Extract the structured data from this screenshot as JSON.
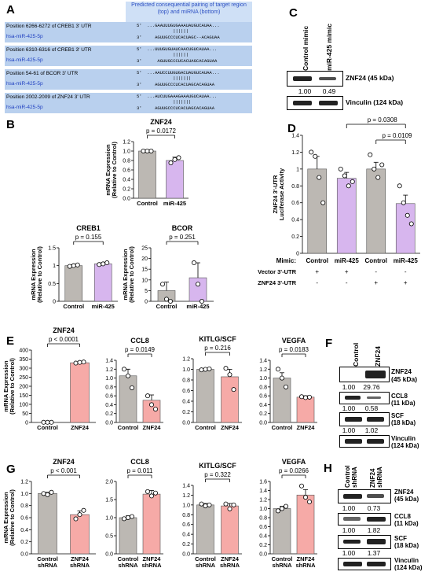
{
  "panels": [
    "A",
    "B",
    "C",
    "D",
    "E",
    "F",
    "G",
    "H"
  ],
  "panel_a": {
    "header": "Predicted consequential pairing of target region (top) and miRNA (bottom)",
    "rows": [
      {
        "target": "Position 6266-6272 of CREB1 3' UTR",
        "mirna": "hsa-miR-425-5p",
        "top": "5'  ...GAAUUUGUGAAAUAUGUCAUAA...",
        "mid": "              ||||||",
        "bottom": "3'     AGUUGCCCUCACUAGC--ACAGUAA"
      },
      {
        "target": "Position 6310-6316 of CREB1 3' UTR",
        "mirna": "hsa-miR-425-5p",
        "top": "5'  ...UUUGUGUAUCAACUGUCAUAA...",
        "mid": "              ||||||",
        "bottom": "3'      AGUUGCCCUCACUAGCACAGUAA"
      },
      {
        "target": "Position 54-61 of BCOR 3' UTR",
        "mirna": "hsa-miR-425-5p",
        "top": "5'  ...AAUCCUUGUGACUAUGUCAUAA...",
        "mid": "              |||||||",
        "bottom": "3'     AGUUGCCCUCACUAGCACAGUAA"
      },
      {
        "target": "Position 2002-2009 of ZNF24 3' UTR",
        "mirna": "hsa-miR-425-5p",
        "top": "5'  ...AUCUUGAAAGAAAUGUCAUAA...",
        "mid": "              |||||||",
        "bottom": "3'     AGUUGCCCUCACUAGCACAGUAA"
      }
    ]
  },
  "panel_c": {
    "lanes": [
      "Control mimic",
      "miR-425 mimic"
    ],
    "labels": [
      "ZNF24 (45 kDa)",
      "Vinculin (124 kDa)"
    ],
    "values": [
      "1.00",
      "0.49"
    ]
  },
  "panel_f": {
    "lanes": [
      "Control",
      "ZNF24"
    ],
    "blots": [
      {
        "label": "ZNF24\n(45 kDa)",
        "values": [
          "1.00",
          "29.76"
        ]
      },
      {
        "label": "CCL8\n(11 kDa)",
        "values": [
          "1.00",
          "0.58"
        ]
      },
      {
        "label": "SCF\n(18 kDa)",
        "values": [
          "1.00",
          "1.02"
        ]
      },
      {
        "label": "Vinculin\n(124 kDa)",
        "values": []
      }
    ]
  },
  "panel_h": {
    "lanes": [
      "Control\nshRNA",
      "ZNF24\nshRNA"
    ],
    "blots": [
      {
        "label": "ZNF24\n(45 kDa)",
        "values": [
          "1.00",
          "0.73"
        ]
      },
      {
        "label": "CCL8\n(11 kDa)",
        "values": [
          "1.00",
          "1.82"
        ]
      },
      {
        "label": "SCF\n(18 kDa)",
        "values": [
          "1.00",
          "1.37"
        ]
      },
      {
        "label": "Vinculin\n(124 kDa)",
        "values": []
      }
    ]
  },
  "colors": {
    "control": "#bcb8b3",
    "mir425": "#d7b6ee",
    "znf24": "#f6aaa7"
  },
  "chart_data": [
    {
      "id": "B1",
      "type": "bar",
      "title": "ZNF24",
      "ylabel": "mRNA Expression\n(Relative to Control)",
      "categories": [
        "Control",
        "miR-425"
      ],
      "values": [
        1.0,
        0.8
      ],
      "errors": [
        0.02,
        0.07
      ],
      "ylim": [
        0,
        1.2
      ],
      "ticks": [
        0,
        0.2,
        0.4,
        0.6,
        0.8,
        1.0,
        1.2
      ],
      "tick_labels": [
        "0.0",
        "0.2",
        "0.4",
        "0.6",
        "0.8",
        "1.0",
        "1.2"
      ],
      "points": [
        [
          1.0,
          1.0,
          1.0
        ],
        [
          0.75,
          0.82,
          0.86
        ]
      ],
      "pvalue": "p = 0.0172",
      "colors": [
        "control",
        "mir425"
      ]
    },
    {
      "id": "B2",
      "type": "bar",
      "title": "CREB1",
      "ylabel": "mRNA Expression\n(Relative to Control)",
      "categories": [
        "Control",
        "miR-425"
      ],
      "values": [
        1.0,
        1.05
      ],
      "errors": [
        0.03,
        0.03
      ],
      "ylim": [
        0,
        1.5
      ],
      "ticks": [
        0,
        0.5,
        1,
        1.5
      ],
      "tick_labels": [
        "0",
        "0.5",
        "1",
        "1.5"
      ],
      "points": [
        [
          0.98,
          1.0,
          1.02
        ],
        [
          1.03,
          1.05,
          1.08
        ]
      ],
      "pvalue": "p = 0.155",
      "colors": [
        "control",
        "mir425"
      ]
    },
    {
      "id": "B3",
      "type": "bar",
      "title": "BCOR",
      "ylabel": "mRNA Expression\n(Relative to Control)",
      "categories": [
        "Control",
        "miR-425"
      ],
      "values": [
        5,
        11
      ],
      "errors": [
        4,
        7
      ],
      "ylim": [
        0,
        25
      ],
      "ticks": [
        0,
        5,
        10,
        15,
        20,
        25
      ],
      "tick_labels": [
        "0",
        "5",
        "10",
        "15",
        "20",
        "25"
      ],
      "points": [
        [
          8,
          1,
          0
        ],
        [
          18,
          8,
          0
        ]
      ],
      "pvalue": "p = 0.251",
      "colors": [
        "control",
        "mir425"
      ]
    },
    {
      "id": "D",
      "type": "bar",
      "ylabel": "ZNF24 3'-UTR\nLuciferase Activity",
      "categories": [
        "Control",
        "miR-425",
        "Control",
        "miR-425"
      ],
      "values": [
        1.0,
        0.89,
        1.0,
        0.59
      ],
      "errors": [
        0.15,
        0.07,
        0.08,
        0.1
      ],
      "ylim": [
        0,
        1.4
      ],
      "ticks": [
        0,
        0.2,
        0.4,
        0.6,
        0.8,
        1.0,
        1.2,
        1.4
      ],
      "tick_labels": [
        "0",
        "0.2",
        "0.4",
        "0.6",
        "0.8",
        "1",
        "1.2",
        "1.4"
      ],
      "points": [
        [
          1.2,
          1.15,
          0.9,
          0.6
        ],
        [
          1.0,
          0.92,
          0.8,
          0.85
        ],
        [
          1.17,
          1.0,
          0.9,
          1.05
        ],
        [
          0.8,
          0.6,
          0.45,
          0.35
        ]
      ],
      "colors": [
        "control",
        "mir425",
        "control",
        "mir425"
      ],
      "pvalues": [
        "p = 0.0308",
        "p = 0.0109"
      ],
      "row_labels": [
        "Mimic:",
        "Vector 3'-UTR",
        "ZNF24 3'-UTR"
      ],
      "vector_signs": [
        "+",
        "+",
        "-",
        "-"
      ],
      "znf24_signs": [
        "-",
        "-",
        "+",
        "+"
      ]
    },
    {
      "id": "E1",
      "type": "bar",
      "title": "ZNF24",
      "ylabel": "mRNA Expression\n(Relative to Control)",
      "categories": [
        "Control",
        "ZNF24"
      ],
      "values": [
        1.0,
        330
      ],
      "errors": [
        0.1,
        5
      ],
      "ylim": [
        0,
        400
      ],
      "ticks": [
        0,
        50,
        100,
        150,
        200,
        250,
        300,
        350,
        400
      ],
      "tick_labels": [
        "0",
        "50",
        "100",
        "150",
        "200",
        "250",
        "300",
        "350",
        "400"
      ],
      "points": [
        [
          1,
          1,
          1
        ],
        [
          328,
          332,
          334
        ]
      ],
      "pvalue": "p < 0.0001",
      "colors": [
        "control",
        "znf24"
      ]
    },
    {
      "id": "E2",
      "type": "bar",
      "title": "CCL8",
      "categories": [
        "Control",
        "ZNF24"
      ],
      "values": [
        1.05,
        0.5
      ],
      "errors": [
        0.15,
        0.12
      ],
      "ylim": [
        0,
        1.4
      ],
      "ticks": [
        0,
        0.2,
        0.4,
        0.6,
        0.8,
        1.0,
        1.2,
        1.4
      ],
      "tick_labels": [
        "0.0",
        "0.2",
        "0.4",
        "0.6",
        "0.8",
        "1.0",
        "1.2",
        "1.4"
      ],
      "points": [
        [
          1.2,
          1.05,
          0.78
        ],
        [
          0.6,
          0.4,
          0.3
        ]
      ],
      "pvalue": "p = 0.0149",
      "colors": [
        "control",
        "znf24"
      ]
    },
    {
      "id": "E3",
      "type": "bar",
      "title": "KITLG/SCF",
      "categories": [
        "Control",
        "ZNF24"
      ],
      "values": [
        1.0,
        0.86
      ],
      "errors": [
        0.01,
        0.14
      ],
      "ylim": [
        0,
        1.2
      ],
      "ticks": [
        0,
        0.2,
        0.4,
        0.6,
        0.8,
        1.0,
        1.2
      ],
      "tick_labels": [
        "0.0",
        "0.2",
        "0.4",
        "0.6",
        "0.8",
        "1.0",
        "1.2"
      ],
      "points": [
        [
          0.99,
          1.0,
          1.01
        ],
        [
          1.02,
          0.9,
          0.62
        ]
      ],
      "pvalue": "p = 0.216",
      "colors": [
        "control",
        "znf24"
      ]
    },
    {
      "id": "E4",
      "type": "bar",
      "title": "VEGFA",
      "categories": [
        "Control",
        "ZNF24"
      ],
      "values": [
        1.0,
        0.57
      ],
      "errors": [
        0.12,
        0.03
      ],
      "ylim": [
        0,
        1.4
      ],
      "ticks": [
        0,
        0.2,
        0.4,
        0.6,
        0.8,
        1.0,
        1.2,
        1.4
      ],
      "tick_labels": [
        "0.0",
        "0.2",
        "0.4",
        "0.6",
        "0.8",
        "1.0",
        "1.2",
        "1.4"
      ],
      "points": [
        [
          1.2,
          1.0,
          0.8
        ],
        [
          0.58,
          0.56,
          0.57
        ]
      ],
      "pvalue": "p = 0.0183",
      "colors": [
        "control",
        "znf24"
      ]
    },
    {
      "id": "G1",
      "type": "bar",
      "title": "ZNF24",
      "ylabel": "mRNA Expression\n(Relative to Control)",
      "categories": [
        "Control shRNA",
        "ZNF24 shRNA"
      ],
      "values": [
        1.0,
        0.65
      ],
      "errors": [
        0.02,
        0.06
      ],
      "ylim": [
        0,
        1.2
      ],
      "ticks": [
        0,
        0.2,
        0.4,
        0.6,
        0.8,
        1.0,
        1.2
      ],
      "tick_labels": [
        "0.0",
        "0.2",
        "0.4",
        "0.6",
        "0.8",
        "1.0",
        "1.2"
      ],
      "points": [
        [
          1.0,
          0.98,
          1.02
        ],
        [
          0.58,
          0.65,
          0.72
        ]
      ],
      "pvalue": "p < 0.001",
      "colors": [
        "control",
        "znf24"
      ]
    },
    {
      "id": "G2",
      "type": "bar",
      "title": "CCL8",
      "categories": [
        "Control shRNA",
        "ZNF24 shRNA"
      ],
      "values": [
        1.0,
        1.65
      ],
      "errors": [
        0.05,
        0.1
      ],
      "ylim": [
        0,
        2.0
      ],
      "ticks": [
        0,
        0.5,
        1.0,
        1.5,
        2.0
      ],
      "tick_labels": [
        "0.0",
        "0.5",
        "1.0",
        "1.5",
        "2.0"
      ],
      "points": [
        [
          0.97,
          1.0,
          1.03
        ],
        [
          1.72,
          1.6,
          1.68
        ]
      ],
      "pvalue": "p = 0.011",
      "colors": [
        "control",
        "znf24"
      ]
    },
    {
      "id": "G3",
      "type": "bar",
      "title": "KITLG/SCF",
      "categories": [
        "Control shRNA",
        "ZNF24 shRNA"
      ],
      "values": [
        1.0,
        0.98
      ],
      "errors": [
        0.03,
        0.05
      ],
      "ylim": [
        0,
        1.4
      ],
      "ticks": [
        0,
        0.2,
        0.4,
        0.6,
        0.8,
        1.0,
        1.2,
        1.4
      ],
      "tick_labels": [
        "0.0",
        "0.2",
        "0.4",
        "0.6",
        "0.8",
        "1.0",
        "1.2",
        "1.4"
      ],
      "points": [
        [
          1.02,
          0.98,
          1.0
        ],
        [
          1.02,
          0.92,
          1.0
        ]
      ],
      "pvalue": "p = 0.322",
      "colors": [
        "control",
        "znf24"
      ]
    },
    {
      "id": "G4",
      "type": "bar",
      "title": "VEGFA",
      "categories": [
        "Control shRNA",
        "ZNF24 shRNA"
      ],
      "values": [
        1.0,
        1.3
      ],
      "errors": [
        0.05,
        0.12
      ],
      "ylim": [
        0,
        1.6
      ],
      "ticks": [
        0,
        0.2,
        0.4,
        0.6,
        0.8,
        1.0,
        1.2,
        1.4,
        1.6
      ],
      "tick_labels": [
        "0.0",
        "0.2",
        "0.4",
        "0.6",
        "0.8",
        "1.0",
        "1.2",
        "1.4",
        "1.6"
      ],
      "points": [
        [
          0.95,
          1.0,
          1.05
        ],
        [
          1.5,
          1.25,
          1.15
        ]
      ],
      "pvalue": "p = 0.0266",
      "colors": [
        "control",
        "znf24"
      ]
    }
  ]
}
